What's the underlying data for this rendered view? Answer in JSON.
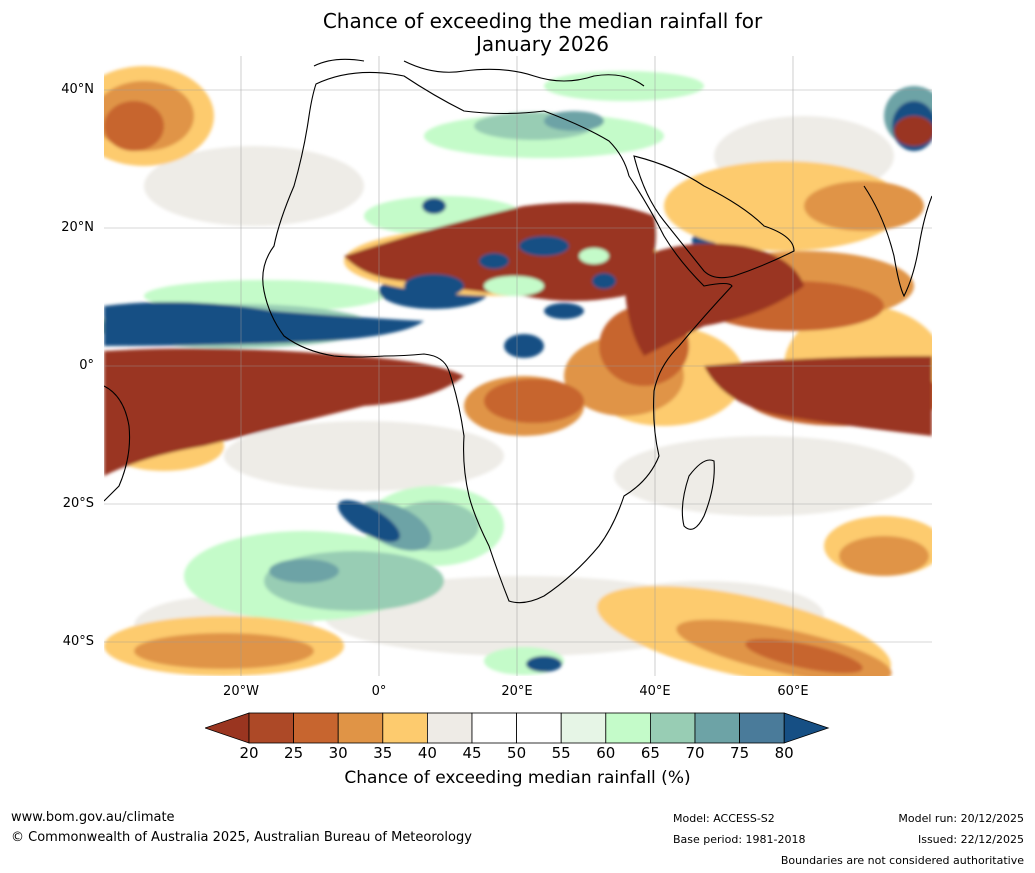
{
  "title_line1": "Chance of exceeding the median rainfall for",
  "title_line2": "January 2026",
  "latitude_labels": [
    "40°N",
    "20°N",
    "0°",
    "20°S",
    "40°S"
  ],
  "longitude_labels": [
    "20°W",
    "0°",
    "20°E",
    "40°E",
    "60°E"
  ],
  "colorbar": {
    "ticks": [
      "20",
      "25",
      "30",
      "35",
      "40",
      "45",
      "50",
      "55",
      "60",
      "65",
      "70",
      "75",
      "80"
    ],
    "colors": [
      "#9a3520",
      "#ad4927",
      "#c7652f",
      "#e09446",
      "#fdcb6e",
      "#eeebe6",
      "#ffffff",
      "#ffffff",
      "#e6f5e6",
      "#c4fbc9",
      "#98cdb4",
      "#6da3a6",
      "#4a7b9a",
      "#164f84"
    ],
    "title": "Chance of exceeding median rainfall (%)"
  },
  "footer": {
    "website": "www.bom.gov.au/climate",
    "copyright": "© Commonwealth of Australia 2025, Australian Bureau of Meteorology",
    "model": "Model: ACCESS-S2",
    "base_period": "Base period: 1981-2018",
    "model_run": "Model run: 20/12/2025",
    "issued": "Issued: 22/12/2025",
    "disclaimer": "Boundaries are not considered authoritative"
  },
  "chart_data": {
    "type": "map",
    "region": "Africa and surrounding oceans",
    "lon_range": [
      -40,
      80
    ],
    "lat_range": [
      -45,
      45
    ],
    "variable": "Chance of exceeding median rainfall (%)",
    "levels": [
      20,
      25,
      30,
      35,
      40,
      45,
      50,
      55,
      60,
      65,
      70,
      75,
      80
    ]
  }
}
